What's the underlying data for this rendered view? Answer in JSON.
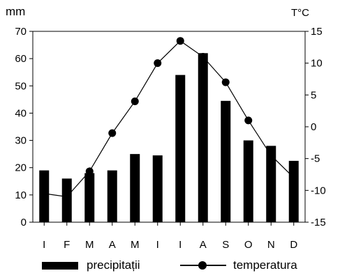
{
  "chart_data": {
    "type": "bar+line",
    "categories": [
      "I",
      "F",
      "M",
      "A",
      "M",
      "I",
      "I",
      "A",
      "S",
      "O",
      "N",
      "D"
    ],
    "left_axis": {
      "unit": "mm",
      "range": [
        0,
        70
      ],
      "ticks": [
        0,
        10,
        20,
        30,
        40,
        50,
        60,
        70
      ]
    },
    "right_axis": {
      "unit": "T°C",
      "range": [
        -15,
        15
      ],
      "ticks": [
        -15,
        -10,
        -5,
        0,
        5,
        10,
        15
      ]
    },
    "series": [
      {
        "name": "precipitații",
        "type": "bar",
        "axis": "left",
        "values": [
          19,
          16,
          18,
          19,
          25,
          24.5,
          54,
          62,
          44.5,
          30,
          28,
          22.5
        ]
      },
      {
        "name": "temperatura",
        "type": "line",
        "axis": "right",
        "values": [
          -10.5,
          -11,
          -7,
          -1,
          4,
          10,
          13.5,
          11,
          7,
          1,
          -4.5,
          -8
        ]
      }
    ],
    "grid": false,
    "legend_position": "bottom",
    "colors": {
      "bars": "#000000",
      "line": "#000000",
      "axes": "#000000"
    }
  }
}
